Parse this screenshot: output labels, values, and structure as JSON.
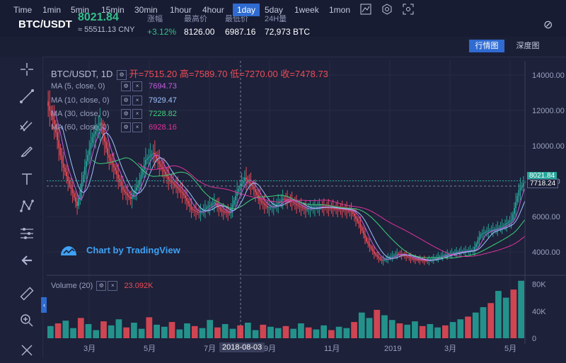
{
  "header": {
    "pair": "BTC/USDT",
    "last_price": "8021.84",
    "cny_price": "≈ 55511.13 CNY",
    "stats": [
      {
        "label": "涨幅",
        "value": "+3.12%"
      },
      {
        "label": "最高价",
        "value": "8126.00"
      },
      {
        "label": "最低价",
        "value": "6987.16"
      },
      {
        "label": "24H量",
        "value": "72,973 BTC"
      }
    ]
  },
  "toolbar": {
    "intervals": [
      "Time",
      "1min",
      "5min",
      "15min",
      "30min",
      "1hour",
      "4hour",
      "1day",
      "5day",
      "1week",
      "1mon"
    ],
    "active_interval": "1day",
    "view_main": "行情图",
    "view_depth": "深度图"
  },
  "legend": {
    "title": "BTC/USDT, 1D",
    "open_label": "开=",
    "open": "7515.20",
    "high_label": "高=",
    "high": "7589.70",
    "low_label": "低=",
    "low": "7270.00",
    "close_label": "收=",
    "close": "7478.73",
    "ma": [
      {
        "name": "MA (5, close, 0)",
        "value": "7694.73",
        "color": "#c35ee0"
      },
      {
        "name": "MA (10, close, 0)",
        "value": "7929.47",
        "color": "#9fc3ff"
      },
      {
        "name": "MA (30, close, 0)",
        "value": "7228.82",
        "color": "#3fd17c"
      },
      {
        "name": "MA (60, close, 0)",
        "value": "6928.16",
        "color": "#e0339c"
      }
    ],
    "volume_name": "Volume (20)",
    "volume_value": "23.092K"
  },
  "watermark": "Chart by TradingView",
  "price_tags": {
    "last": "8021.84",
    "ref": "7718.24"
  },
  "crosshair_date": "2018-08-03",
  "colors": {
    "up": "#26a69a",
    "down": "#ef4b57",
    "bg": "#1d2139"
  },
  "chart_data": {
    "type": "candlestick",
    "y_axis_ticks": [
      4000,
      6000,
      8000,
      10000,
      12000,
      14000
    ],
    "y_axis_tick_labels": [
      "4000.00",
      "6000.00",
      "8000.00",
      "10000.00",
      "12000.00",
      "14000.00"
    ],
    "ylim": [
      2800,
      14800
    ],
    "volume_axis_ticks": [
      0,
      40000,
      80000
    ],
    "volume_axis_tick_labels": [
      "0",
      "40K",
      "80K"
    ],
    "x_tick_labels": [
      "3月",
      "5月",
      "7月",
      "9月",
      "11月",
      "2019",
      "3月",
      "5月"
    ],
    "close_path": [
      [
        0,
        12500
      ],
      [
        5,
        11200
      ],
      [
        10,
        9000
      ],
      [
        15,
        7800
      ],
      [
        20,
        6600
      ],
      [
        25,
        8800
      ],
      [
        30,
        10500
      ],
      [
        35,
        11300
      ],
      [
        40,
        9500
      ],
      [
        45,
        8600
      ],
      [
        50,
        7500
      ],
      [
        55,
        7000
      ],
      [
        60,
        7800
      ],
      [
        65,
        9200
      ],
      [
        70,
        9600
      ],
      [
        75,
        8800
      ],
      [
        80,
        8100
      ],
      [
        85,
        7700
      ],
      [
        90,
        7200
      ],
      [
        95,
        6400
      ],
      [
        100,
        6200
      ],
      [
        105,
        6500
      ],
      [
        110,
        6800
      ],
      [
        115,
        6300
      ],
      [
        120,
        6200
      ],
      [
        125,
        7400
      ],
      [
        130,
        8200
      ],
      [
        135,
        7700
      ],
      [
        140,
        6900
      ],
      [
        145,
        6500
      ],
      [
        150,
        6600
      ],
      [
        155,
        7000
      ],
      [
        160,
        6900
      ],
      [
        165,
        6600
      ],
      [
        170,
        6400
      ],
      [
        175,
        6500
      ],
      [
        180,
        6550
      ],
      [
        185,
        6500
      ],
      [
        190,
        6450
      ],
      [
        195,
        6400
      ],
      [
        200,
        6300
      ],
      [
        205,
        5600
      ],
      [
        210,
        4600
      ],
      [
        215,
        3900
      ],
      [
        220,
        3500
      ],
      [
        225,
        3700
      ],
      [
        230,
        3900
      ],
      [
        235,
        3800
      ],
      [
        240,
        3600
      ],
      [
        245,
        3550
      ],
      [
        250,
        3500
      ],
      [
        255,
        3650
      ],
      [
        260,
        3800
      ],
      [
        265,
        3900
      ],
      [
        270,
        4000
      ],
      [
        275,
        4050
      ],
      [
        280,
        4100
      ],
      [
        285,
        5000
      ],
      [
        290,
        5200
      ],
      [
        295,
        5300
      ],
      [
        300,
        5500
      ],
      [
        305,
        5800
      ],
      [
        310,
        7500
      ],
      [
        314,
        8021.84
      ]
    ],
    "volume_bars": [
      18000,
      22000,
      26000,
      15000,
      30000,
      21000,
      12000,
      25000,
      19000,
      28000,
      16000,
      23000,
      14000,
      31000,
      20000,
      17000,
      24000,
      13000,
      22000,
      18000,
      15000,
      27000,
      16000,
      21000,
      14000,
      19000,
      23000,
      12000,
      20000,
      17000,
      15000,
      18000,
      14000,
      22000,
      16000,
      13000,
      19000,
      12000,
      17000,
      15000,
      24000,
      38000,
      30000,
      42000,
      34000,
      27000,
      22000,
      20000,
      25000,
      18000,
      21000,
      16000,
      19000,
      24000,
      28000,
      32000,
      38000,
      46000,
      52000,
      70000,
      60000,
      72000,
      85000
    ]
  }
}
